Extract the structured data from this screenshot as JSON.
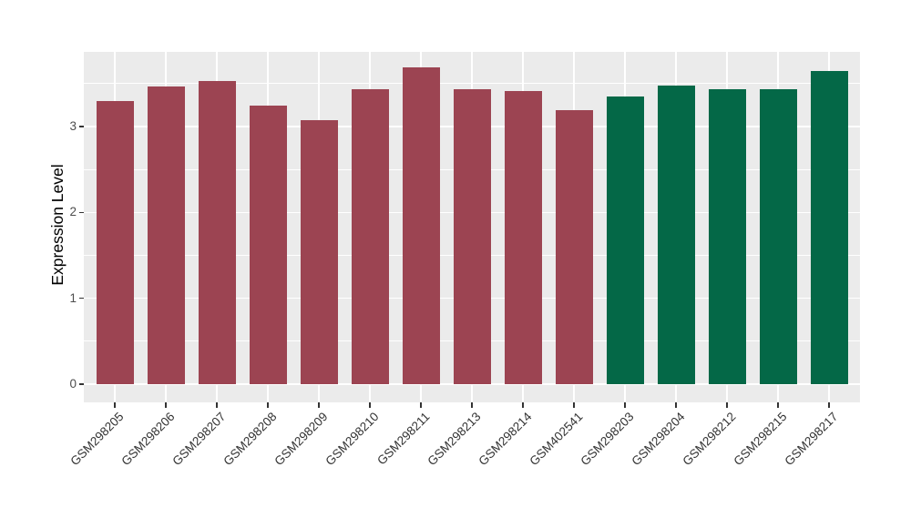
{
  "figure": {
    "background_color": "#FFFFFF",
    "panel_background_color": "#EBEBEB",
    "grid_color": "#FFFFFF",
    "tick_mark_color": "#333333",
    "axis_text_color": "#4D4D4D",
    "axis_title_color": "#000000"
  },
  "chart_data": {
    "type": "bar",
    "title": "",
    "xlabel": "",
    "ylabel": "Expression Level",
    "ylim": [
      0,
      3.87
    ],
    "yticks": [
      0,
      1,
      2,
      3
    ],
    "grid": "on",
    "legend_position": "none",
    "bar_orientation": "vertical",
    "categories": [
      "GSM298205",
      "GSM298206",
      "GSM298207",
      "GSM298208",
      "GSM298209",
      "GSM298210",
      "GSM298211",
      "GSM298213",
      "GSM298214",
      "GSM402541",
      "GSM298203",
      "GSM298204",
      "GSM298212",
      "GSM298215",
      "GSM298217"
    ],
    "values": [
      3.3,
      3.47,
      3.53,
      3.24,
      3.07,
      3.44,
      3.69,
      3.44,
      3.41,
      3.19,
      3.35,
      3.48,
      3.44,
      3.44,
      3.65
    ],
    "groups": [
      "group1",
      "group1",
      "group1",
      "group1",
      "group1",
      "group1",
      "group1",
      "group1",
      "group1",
      "group1",
      "group2",
      "group2",
      "group2",
      "group2",
      "group2"
    ],
    "group_colors": {
      "group1": "#9C4452",
      "group2": "#046847"
    }
  }
}
